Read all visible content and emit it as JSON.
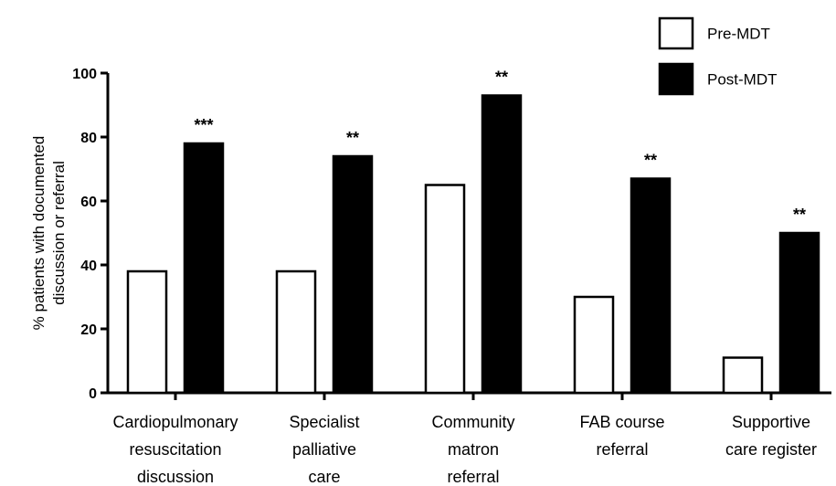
{
  "chart_data": {
    "type": "bar",
    "ylabel": "% patients with documented discussion or referral",
    "ylabel_lines": [
      "% patients with documented",
      "discussion or referral"
    ],
    "ylim": [
      0,
      100
    ],
    "yticks": [
      "0",
      "20",
      "40",
      "60",
      "80",
      "100"
    ],
    "categories": [
      "Cardiopulmonary resuscitation discussion",
      "Specialist palliative care",
      "Community matron referral",
      "FAB course referral",
      "Supportive care register"
    ],
    "category_lines": [
      [
        "Cardiopulmonary",
        "resuscitation",
        "discussion"
      ],
      [
        "Specialist",
        "palliative",
        "care"
      ],
      [
        "Community",
        "matron",
        "referral"
      ],
      [
        "FAB course",
        "referral"
      ],
      [
        "Supportive",
        "care register"
      ]
    ],
    "series": [
      {
        "name": "Pre-MDT",
        "values": [
          38,
          38,
          65,
          30,
          11
        ],
        "color": "#ffffff"
      },
      {
        "name": "Post-MDT",
        "values": [
          78,
          74,
          93,
          67,
          50
        ],
        "color": "#000000"
      }
    ],
    "significance": [
      "***",
      "**",
      "**",
      "**",
      "**"
    ],
    "legend_position": "top-right",
    "grid": false
  }
}
